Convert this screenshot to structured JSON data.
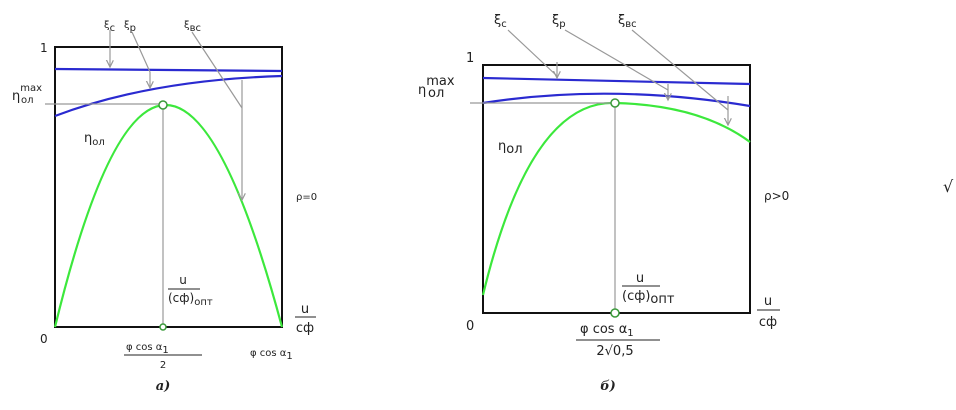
{
  "panels": [
    {
      "y_one": "1",
      "origin": "0",
      "xi_c": {
        "base": "ξ",
        "sub": "c"
      },
      "xi_p": {
        "base": "ξ",
        "sub": "р"
      },
      "xi_vs": {
        "base": "ξ",
        "sub": "вс"
      },
      "eta_max": {
        "base": "η",
        "sup": "max",
        "sub": "ол"
      },
      "eta": {
        "base": "η",
        "sub": "ол"
      },
      "rho": "ρ=0",
      "u_opt": {
        "num": "u",
        "den": "(cф)",
        "den_sub": "опт"
      },
      "u_cf": {
        "num": "u",
        "den": "cф"
      },
      "x_opt": {
        "num": "φ cos α",
        "num_sub": "1",
        "den": "2"
      },
      "x_end": {
        "base": "φ cos α",
        "sub": "1"
      },
      "caption": "а)"
    },
    {
      "y_one": "1",
      "origin": "0",
      "xi_c": {
        "base": "ξ",
        "sub": "c"
      },
      "xi_p": {
        "base": "ξ",
        "sub": "р"
      },
      "xi_vs": {
        "base": "ξ",
        "sub": "вс"
      },
      "eta_max": {
        "base": "η",
        "sup": "max",
        "sub": "ол"
      },
      "eta": {
        "base": "η",
        "sub": "ол"
      },
      "rho": "ρ>0",
      "u_opt": {
        "num": "u",
        "den": "(cф)",
        "den_sub": "опт"
      },
      "u_cf": {
        "num": "u",
        "den": "cф"
      },
      "x_opt": {
        "num": "φ cos α",
        "num_sub": "1",
        "den": "2√0,5"
      },
      "caption": "б)"
    }
  ],
  "stray": "√"
}
